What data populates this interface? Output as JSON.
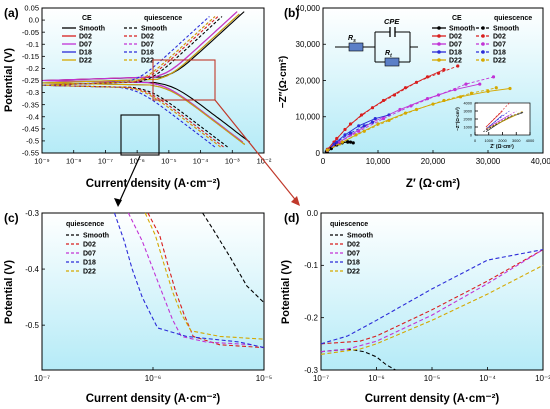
{
  "figure_labels": [
    "(a)",
    "(b)",
    "(c)",
    "(d)"
  ],
  "colors": {
    "Smooth": "#000000",
    "D02": "#d81e1e",
    "D07": "#c133d6",
    "D18": "#2b2bd8",
    "D22": "#d4a800",
    "panel_bg_top": "#ffffff",
    "panel_bg_bottom": "#b5ebf7",
    "callout": "#c0392b"
  },
  "legend_groups": [
    "CE",
    "quiescence"
  ],
  "series_names": [
    "Smooth",
    "D02",
    "D07",
    "D18",
    "D22"
  ],
  "chart_data": [
    {
      "id": "a",
      "type": "line",
      "xlabel": "Current density (A·cm⁻²)",
      "ylabel": "Potential (V)",
      "xscale": "log",
      "xlim": [
        1e-09,
        0.01
      ],
      "ylim": [
        -0.55,
        0.05
      ],
      "xticks": [
        "10⁻⁹",
        "10⁻⁸",
        "10⁻⁷",
        "10⁻⁶",
        "10⁻⁵",
        "10⁻⁴",
        "10⁻³",
        "10⁻²"
      ],
      "yticks": [
        "0.05",
        "0.0",
        "-0.05",
        "-0.1",
        "-0.15",
        "-0.2",
        "-0.25",
        "-0.3",
        "-0.35",
        "-0.4",
        "-0.45",
        "-0.5",
        "-0.55"
      ],
      "legend_position": "top",
      "series": [
        {
          "name": "Smooth",
          "group": "CE",
          "ecorr": -0.25,
          "icorr": 1e-05
        },
        {
          "name": "D02",
          "group": "CE",
          "ecorr": -0.25,
          "icorr": 6e-06
        },
        {
          "name": "D07",
          "group": "CE",
          "ecorr": -0.25,
          "icorr": 6e-06
        },
        {
          "name": "D18",
          "group": "CE",
          "ecorr": -0.26,
          "icorr": 7e-06
        },
        {
          "name": "D22",
          "group": "CE",
          "ecorr": -0.26,
          "icorr": 7e-06
        },
        {
          "name": "Smooth",
          "group": "quiescence",
          "ecorr": -0.27,
          "icorr": 2e-06
        },
        {
          "name": "D02",
          "group": "quiescence",
          "ecorr": -0.27,
          "icorr": 1.5e-06
        },
        {
          "name": "D07",
          "group": "quiescence",
          "ecorr": -0.27,
          "icorr": 1.2e-06
        },
        {
          "name": "D18",
          "group": "quiescence",
          "ecorr": -0.27,
          "icorr": 8e-07
        },
        {
          "name": "D22",
          "group": "quiescence",
          "ecorr": -0.27,
          "icorr": 1.2e-06
        }
      ]
    },
    {
      "id": "b",
      "type": "scatter",
      "xlabel": "Z′ (Ω·cm²)",
      "ylabel": "−Z″(Ω·cm²)",
      "xlim": [
        0,
        40000
      ],
      "ylim": [
        0,
        40000
      ],
      "xticks": [
        "0",
        "10,000",
        "20,000",
        "30,000",
        "40,000"
      ],
      "yticks": [
        "0",
        "10,000",
        "20,000",
        "30,000",
        "40,000"
      ],
      "legend_position": "top-right",
      "circuit_labels": [
        "CPE",
        "R",
        "s",
        "R",
        "t"
      ],
      "series": [
        {
          "name": "Smooth",
          "group": "CE",
          "x": [
            800,
            1500,
            2500,
            3500,
            4500,
            5500
          ],
          "y": [
            400,
            1200,
            2200,
            2800,
            3000,
            2800
          ]
        },
        {
          "name": "D02",
          "group": "CE",
          "x": [
            800,
            2000,
            4000,
            7000,
            11000,
            15000,
            19000,
            22000
          ],
          "y": [
            1000,
            3000,
            6500,
            10500,
            14500,
            18000,
            21000,
            23000
          ]
        },
        {
          "name": "D07",
          "group": "CE",
          "x": [
            800,
            2500,
            5000,
            9000,
            14000,
            19000,
            24000,
            28500
          ],
          "y": [
            800,
            2500,
            5000,
            8500,
            12000,
            15000,
            17500,
            19000
          ]
        },
        {
          "name": "D18",
          "group": "CE",
          "x": [
            800,
            2000,
            4000,
            6500,
            9500,
            12000
          ],
          "y": [
            700,
            2500,
            5000,
            7500,
            9500,
            10500
          ]
        },
        {
          "name": "D22",
          "group": "CE",
          "x": [
            800,
            3000,
            6000,
            10000,
            15000,
            20000,
            25000,
            30000,
            34000
          ],
          "y": [
            700,
            2500,
            5000,
            8000,
            11000,
            13500,
            15500,
            17000,
            17800
          ]
        },
        {
          "name": "Smooth",
          "group": "quiescence",
          "x": [
            600,
            1500,
            2500,
            3500,
            4500,
            5000
          ],
          "y": [
            400,
            1300,
            2300,
            2900,
            3100,
            3000
          ]
        },
        {
          "name": "D02",
          "group": "quiescence",
          "x": [
            800,
            2500,
            5000,
            9000,
            13000,
            17000,
            21000,
            24500
          ],
          "y": [
            1000,
            4000,
            8000,
            12500,
            16000,
            19500,
            22000,
            24000
          ]
        },
        {
          "name": "D07",
          "group": "quiescence",
          "x": [
            800,
            3000,
            6500,
            11000,
            16000,
            21000,
            26000,
            31000
          ],
          "y": [
            700,
            3000,
            6000,
            9500,
            13000,
            16000,
            19000,
            21000
          ]
        },
        {
          "name": "D18",
          "group": "quiescence",
          "x": [
            800,
            2500,
            5000,
            7500,
            9000
          ],
          "y": [
            800,
            3000,
            5500,
            7500,
            8500
          ]
        },
        {
          "name": "D22",
          "group": "quiescence",
          "x": [
            800,
            3500,
            7500,
            12000,
            17000,
            22000,
            27000,
            31500
          ],
          "y": [
            800,
            3000,
            6000,
            9000,
            12000,
            14500,
            16500,
            18000
          ]
        }
      ],
      "inset": {
        "xlabel": "Z′ (Ω·cm²)",
        "ylabel": "−Z″(Ω·cm²)",
        "xlim": [
          0,
          4000
        ],
        "ylim": [
          0,
          4000
        ],
        "xticks": [
          "0",
          "1000",
          "2000",
          "3000",
          "4000"
        ],
        "yticks": [
          "0",
          "1000",
          "2000",
          "3000",
          "4000"
        ]
      }
    },
    {
      "id": "c",
      "type": "line",
      "xlabel": "Current density (A·cm⁻²)",
      "ylabel": "Potential (V)",
      "xscale": "log",
      "xlim": [
        1e-07,
        1e-05
      ],
      "ylim": [
        -0.58,
        -0.3
      ],
      "xticks": [
        "10⁻⁷",
        "10⁻⁶",
        "10⁻⁵"
      ],
      "yticks": [
        "-0.3",
        "-0.4",
        "-0.5"
      ],
      "legend_title": "quiescence",
      "legend_position": "top-left",
      "series": [
        {
          "name": "Smooth",
          "x": [
            2.8e-06,
            3.5e-06,
            5e-06,
            7e-06,
            1e-05
          ],
          "y": [
            -0.3,
            -0.33,
            -0.38,
            -0.43,
            -0.46
          ]
        },
        {
          "name": "D02",
          "x": [
            9e-07,
            1.15e-06,
            1.35e-06,
            1.6e-06,
            1.9e-06,
            2.3e-06,
            4e-06,
            1e-05
          ],
          "y": [
            -0.3,
            -0.34,
            -0.39,
            -0.44,
            -0.48,
            -0.52,
            -0.535,
            -0.54
          ]
        },
        {
          "name": "D07",
          "x": [
            6e-07,
            8e-07,
            1e-06,
            1.25e-06,
            1.5e-06,
            1.8e-06,
            3e-06,
            8e-06
          ],
          "y": [
            -0.3,
            -0.35,
            -0.4,
            -0.45,
            -0.49,
            -0.52,
            -0.53,
            -0.535
          ]
        },
        {
          "name": "D18",
          "x": [
            4.5e-07,
            5.5e-07,
            6.5e-07,
            8e-07,
            9.5e-07,
            1.1e-06,
            2e-06,
            6e-06,
            1e-05
          ],
          "y": [
            -0.3,
            -0.35,
            -0.4,
            -0.45,
            -0.48,
            -0.505,
            -0.52,
            -0.53,
            -0.54
          ]
        },
        {
          "name": "D22",
          "x": [
            8.5e-07,
            1.05e-06,
            1.25e-06,
            1.5e-06,
            1.8e-06,
            2.2e-06,
            4e-06,
            1e-05
          ],
          "y": [
            -0.3,
            -0.34,
            -0.39,
            -0.44,
            -0.48,
            -0.51,
            -0.52,
            -0.525
          ]
        }
      ]
    },
    {
      "id": "d",
      "type": "line",
      "xlabel": "Current density (A·cm⁻²)",
      "ylabel": "Potential (V)",
      "xscale": "log",
      "xlim": [
        1e-07,
        0.001
      ],
      "ylim": [
        -0.3,
        0.0
      ],
      "xticks": [
        "10⁻⁷",
        "10⁻⁶",
        "10⁻⁵",
        "10⁻⁴",
        "10⁻³"
      ],
      "yticks": [
        "0.0",
        "-0.1",
        "-0.2",
        "-0.3"
      ],
      "legend_title": "quiescence",
      "legend_position": "top-left",
      "series": [
        {
          "name": "Smooth",
          "x": [
            1e-07,
            3e-07,
            6e-07,
            1e-06,
            1.5e-06,
            2.2e-06
          ],
          "y": [
            -0.265,
            -0.26,
            -0.265,
            -0.275,
            -0.29,
            -0.3
          ]
        },
        {
          "name": "D02",
          "x": [
            1e-07,
            5e-07,
            1e-06,
            1e-05,
            0.0001,
            0.001
          ],
          "y": [
            -0.25,
            -0.245,
            -0.235,
            -0.185,
            -0.13,
            -0.07
          ]
        },
        {
          "name": "D07",
          "x": [
            1e-07,
            3e-07,
            1e-06,
            1e-05,
            0.0001,
            0.001
          ],
          "y": [
            -0.265,
            -0.26,
            -0.245,
            -0.195,
            -0.135,
            -0.07
          ]
        },
        {
          "name": "D18",
          "x": [
            1e-07,
            3e-07,
            1e-06,
            1e-05,
            0.0001,
            0.001
          ],
          "y": [
            -0.25,
            -0.235,
            -0.205,
            -0.145,
            -0.09,
            -0.07
          ]
        },
        {
          "name": "D22",
          "x": [
            1e-07,
            5e-07,
            1e-06,
            1e-05,
            0.0001,
            0.001
          ],
          "y": [
            -0.27,
            -0.26,
            -0.25,
            -0.205,
            -0.155,
            -0.1
          ]
        }
      ]
    }
  ]
}
